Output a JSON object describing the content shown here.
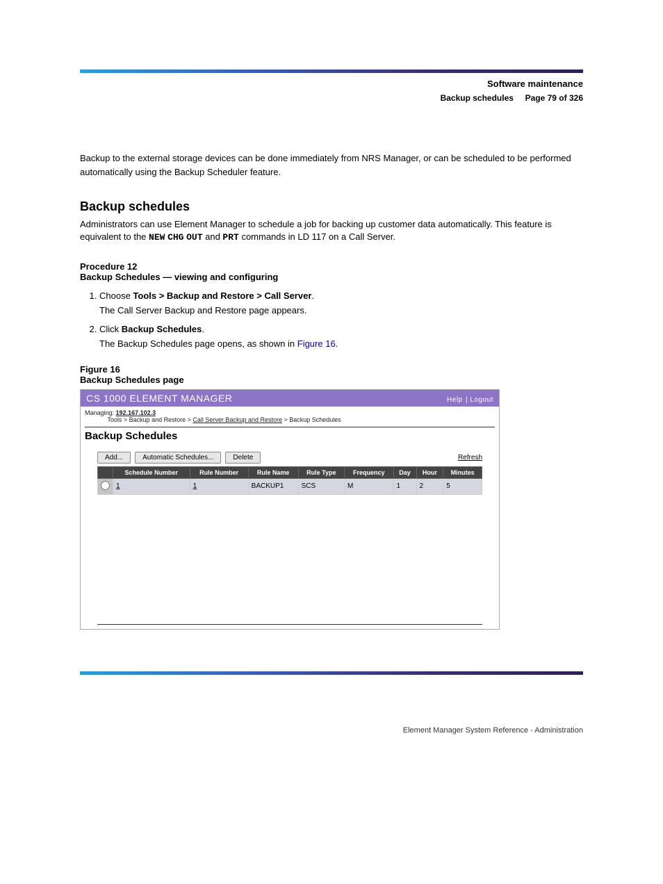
{
  "chapter_head": "Software maintenance",
  "chapter_sub": "Backup schedules     Page 79 of 326",
  "body_para_1": "Backup to the external storage devices can be done immediately from NRS Manager, or can be scheduled to be performed automatically using the Backup Scheduler feature.",
  "section_title": "Backup schedules",
  "section_para": "Administrators can use Element Manager to schedule a job for backing up customer data automatically. This feature is equivalent to the NEW CHG OUT and PRT commands in LD 117 on a Call Server.",
  "procedure_title": "Procedure 12",
  "procedure_name": "Backup Schedules — viewing and configuring",
  "steps": [
    "Choose Tools > Backup and Restore > Call Server.",
    "The Call Server Backup and Restore page appears.",
    "Click Backup Schedules.",
    "The Backup Schedules page opens, as shown in Figure 16."
  ],
  "figure_caption": "Figure 16\nBackup Schedules page",
  "screenshot": {
    "title": "CS 1000 ELEMENT MANAGER",
    "help": "Help",
    "logout": "Logout",
    "managing_label": "Managing:",
    "managing_ip": "192.167.102.3",
    "crumbs_prefix": "Tools > Backup and Restore > ",
    "crumbs_link": "Call Server Backup and Restore",
    "crumbs_suffix": " > Backup Schedules",
    "page_title": "Backup Schedules",
    "btn_add": "Add...",
    "btn_auto": "Automatic Schedules...",
    "btn_delete": "Delete",
    "link_refresh": "Refresh",
    "columns": [
      "",
      "Schedule Number",
      "Rule Number",
      "Rule Name",
      "Rule Type",
      "Frequency",
      "Day",
      "Hour",
      "Minutes"
    ],
    "row": {
      "schedule_number": "1",
      "rule_number": "1",
      "rule_name": "BACKUP1",
      "rule_type": "SCS",
      "frequency": "M",
      "day": "1",
      "hour": "2",
      "minutes": "5"
    }
  },
  "footer": "Element Manager System Reference - Administration",
  "colors": {
    "purple_header": "#8d74c7",
    "table_header_bg": "#444444",
    "row_bg": "#d6d6e0"
  }
}
